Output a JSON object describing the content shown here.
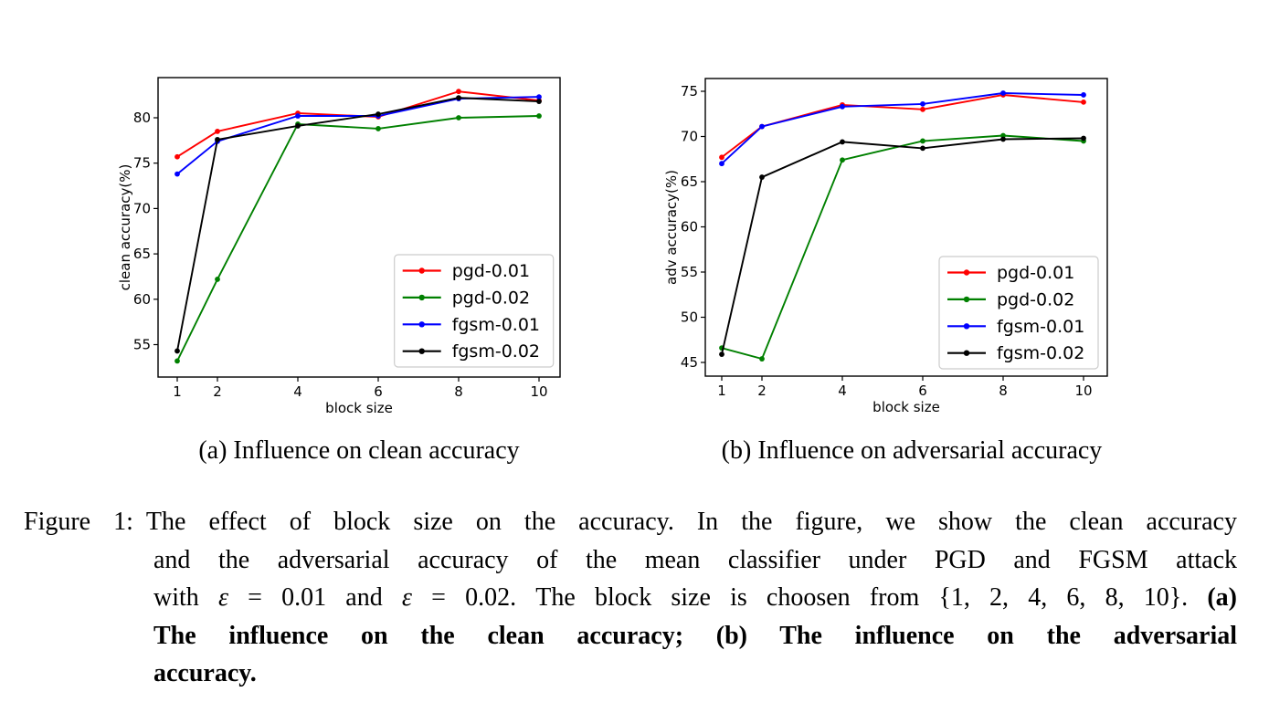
{
  "page": {
    "background": "#ffffff"
  },
  "chart_data": [
    {
      "type": "line",
      "panel": "a",
      "title": "",
      "xlabel": "block size",
      "ylabel": "clean accuracy(%)",
      "x": [
        1,
        2,
        4,
        6,
        8,
        10
      ],
      "xticks": [
        "1",
        "2",
        "4",
        "6",
        "8",
        "10"
      ],
      "yticks": [
        55,
        60,
        65,
        70,
        75,
        80
      ],
      "xlim": [
        0.75,
        10.52
      ],
      "ylim": [
        51.4,
        84.4
      ],
      "grid": false,
      "legend_position": "lower right",
      "series": [
        {
          "name": "pgd-0.01",
          "color": "#ff0000",
          "values": [
            75.7,
            78.5,
            80.5,
            80.1,
            82.9,
            81.9
          ]
        },
        {
          "name": "pgd-0.02",
          "color": "#008000",
          "values": [
            53.2,
            62.2,
            79.3,
            78.8,
            80.0,
            80.2
          ]
        },
        {
          "name": "fgsm-0.01",
          "color": "#0000ff",
          "values": [
            73.8,
            77.4,
            80.2,
            80.2,
            82.1,
            82.3
          ]
        },
        {
          "name": "fgsm-0.02",
          "color": "#000000",
          "values": [
            54.3,
            77.6,
            79.1,
            80.4,
            82.2,
            81.8
          ]
        }
      ],
      "caption": "(a) Influence on clean accuracy"
    },
    {
      "type": "line",
      "panel": "b",
      "title": "",
      "xlabel": "block size",
      "ylabel": "adv accuracy(%)",
      "x": [
        1,
        2,
        4,
        6,
        8,
        10
      ],
      "xticks": [
        "1",
        "2",
        "4",
        "6",
        "8",
        "10"
      ],
      "yticks": [
        45,
        50,
        55,
        60,
        65,
        70,
        75
      ],
      "xlim": [
        0.52,
        10.52
      ],
      "ylim": [
        43.5,
        76.4
      ],
      "grid": false,
      "legend_position": "lower right",
      "series": [
        {
          "name": "pgd-0.01",
          "color": "#ff0000",
          "values": [
            67.7,
            71.1,
            73.5,
            73.0,
            74.6,
            73.8
          ]
        },
        {
          "name": "pgd-0.02",
          "color": "#008000",
          "values": [
            46.6,
            45.4,
            67.4,
            69.5,
            70.1,
            69.5
          ]
        },
        {
          "name": "fgsm-0.01",
          "color": "#0000ff",
          "values": [
            67.0,
            71.1,
            73.3,
            73.6,
            74.8,
            74.6
          ]
        },
        {
          "name": "fgsm-0.02",
          "color": "#000000",
          "values": [
            45.9,
            65.5,
            69.4,
            68.7,
            69.7,
            69.8
          ]
        }
      ],
      "caption": "(b) Influence on adversarial accuracy"
    }
  ],
  "caption": {
    "label": "Figure 1:",
    "lines": [
      {
        "justify": true,
        "indent": false,
        "segments": [
          {
            "text": "Figure 1:",
            "bold": false,
            "gap_after": true
          },
          {
            "text": "The effect of block size on the accuracy. In the figure, we show the clean accuracy",
            "bold": false
          }
        ]
      },
      {
        "justify": true,
        "indent": true,
        "segments": [
          {
            "text": "and the adversarial accuracy of the mean classifier under PGD and FGSM attack",
            "bold": false
          }
        ]
      },
      {
        "justify": true,
        "indent": true,
        "segments": [
          {
            "text": "with ",
            "bold": false
          },
          {
            "text": "ε",
            "bold": false,
            "italic": true
          },
          {
            "text": " = 0.01 and ",
            "bold": false
          },
          {
            "text": "ε",
            "bold": false,
            "italic": true
          },
          {
            "text": " = 0.02. The block size is choosen from {1, 2, 4, 6, 8, 10}. ",
            "bold": false
          },
          {
            "text": "(a)",
            "bold": true
          }
        ]
      },
      {
        "justify": true,
        "indent": true,
        "segments": [
          {
            "text": "The influence on the clean accuracy; (b) The influence on the adversarial",
            "bold": true
          }
        ]
      },
      {
        "justify": false,
        "indent": true,
        "segments": [
          {
            "text": "accuracy.",
            "bold": true
          }
        ]
      }
    ]
  }
}
